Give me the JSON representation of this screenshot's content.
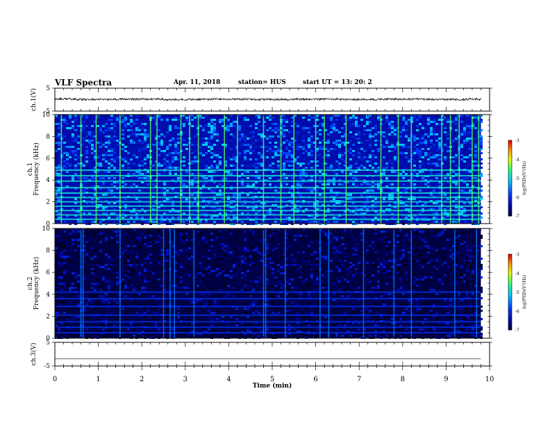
{
  "header": {
    "title": "VLF Spectra",
    "date": "Apr. 11, 2018",
    "station": "station= HUS",
    "start": "start  UT =   13: 20: 2"
  },
  "colors": {
    "spectrogram_background": "#000010",
    "line_color": "#000000"
  },
  "chart_data": [
    {
      "type": "line",
      "name_label": "ch.1(V)",
      "ylabel": "ch.1(V)",
      "ylim": [
        -5,
        5
      ],
      "yticks": [
        "5",
        "-5"
      ],
      "xlim": [
        0,
        10
      ],
      "x": [
        0,
        1,
        2,
        3,
        4,
        5,
        6,
        7,
        8,
        9,
        9.8
      ],
      "values": [
        0.3,
        0.1,
        0.2,
        0.1,
        0.2,
        0.1,
        0.2,
        0.1,
        0.2,
        0.1,
        0.2
      ]
    },
    {
      "type": "heatmap",
      "ylabel_top": "ch.1",
      "ylabel": "Frequency (kHz)",
      "ylim": [
        0,
        10
      ],
      "yticks": [
        "0",
        "2",
        "4",
        "6",
        "8",
        "10"
      ],
      "xlim": [
        0,
        10
      ],
      "data_end_min": 9.8,
      "colorbar": {
        "label": "log(PSD)(V²/Hz)",
        "range": [
          -7,
          -3
        ],
        "ticks": [
          "-3",
          "-4",
          "-5",
          "-6",
          "-7"
        ]
      },
      "horizontal_bands_khz": [
        0.4,
        0.8,
        1.2,
        1.6,
        2.0,
        2.4,
        2.8,
        3.3,
        3.9,
        4.4,
        4.9
      ],
      "vertical_bursts_min": [
        0.15,
        0.6,
        0.95,
        1.5,
        2.2,
        2.35,
        2.9,
        3.1,
        3.3,
        3.9,
        4.2,
        4.8,
        5.2,
        5.5,
        6.0,
        6.2,
        6.7,
        7.5,
        7.9,
        8.2,
        8.9,
        9.1,
        9.3,
        9.6,
        9.75
      ],
      "typical_level": -5.6
    },
    {
      "type": "heatmap",
      "ylabel_top": "ch.2",
      "ylabel": "Frequency (kHz)",
      "ylim": [
        0,
        10
      ],
      "yticks": [
        "0",
        "2",
        "4",
        "6",
        "8",
        "10"
      ],
      "xlim": [
        0,
        10
      ],
      "data_end_min": 9.8,
      "colorbar": {
        "label": "log(PSD)(V²/Hz)",
        "range": [
          -7,
          -3
        ],
        "ticks": [
          "-3",
          "-4",
          "-5",
          "-6",
          "-7"
        ]
      },
      "horizontal_bands_khz": [
        0.5,
        1.0,
        1.5,
        2.1,
        2.9,
        3.6,
        4.2
      ],
      "vertical_bursts_min": [
        0.6,
        0.65,
        1.5,
        2.5,
        2.65,
        2.75,
        3.2,
        4.8,
        4.85,
        5.3,
        6.1,
        6.3,
        7.1,
        7.8,
        8.2,
        9.2,
        9.7
      ],
      "typical_level": -6.7
    },
    {
      "type": "line",
      "ylabel": "ch.3(V)",
      "ylim": [
        -5,
        5
      ],
      "yticks": [
        "5",
        "-5"
      ],
      "xlim": [
        0,
        10
      ],
      "x": [
        0,
        9.8
      ],
      "values": [
        -2,
        -2
      ]
    }
  ],
  "xaxis": {
    "label": "Time (min)",
    "ticks": [
      "0",
      "1",
      "2",
      "3",
      "4",
      "5",
      "6",
      "7",
      "8",
      "9",
      "10"
    ]
  }
}
